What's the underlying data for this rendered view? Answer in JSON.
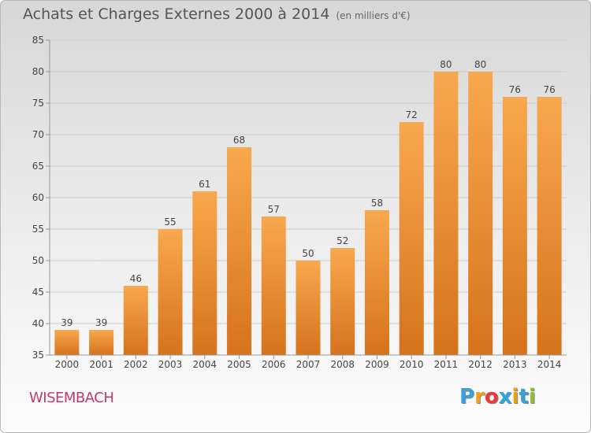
{
  "title": "Achats et Charges Externes 2000 à 2014",
  "subtitle": "(en milliers d'€)",
  "commune": "WISEMBACH",
  "logo": {
    "letters": [
      "P",
      "r",
      "o",
      "x",
      "i",
      "t",
      "i"
    ],
    "colors": [
      "#3aa0d8",
      "#f0a020",
      "#e83c3c",
      "#2aa8e0",
      "#e5a20f",
      "#3aa0d8",
      "#90c030"
    ]
  },
  "colors": {
    "bar_top": "#f8a84e",
    "bar_bottom": "#d6731c",
    "label": "#444444",
    "grid": "#cccccc"
  },
  "chart_data": {
    "type": "bar",
    "categories": [
      "2000",
      "2001",
      "2002",
      "2003",
      "2004",
      "2005",
      "2006",
      "2007",
      "2008",
      "2009",
      "2010",
      "2011",
      "2012",
      "2013",
      "2014"
    ],
    "values": [
      39,
      39,
      46,
      55,
      61,
      68,
      57,
      50,
      52,
      58,
      72,
      80,
      80,
      76,
      76
    ],
    "title": "Achats et Charges Externes 2000 à 2014",
    "ylim": [
      35,
      85
    ],
    "yticks": [
      35,
      40,
      45,
      50,
      55,
      60,
      65,
      70,
      75,
      80,
      85
    ],
    "grid": true,
    "data_labels": true
  }
}
